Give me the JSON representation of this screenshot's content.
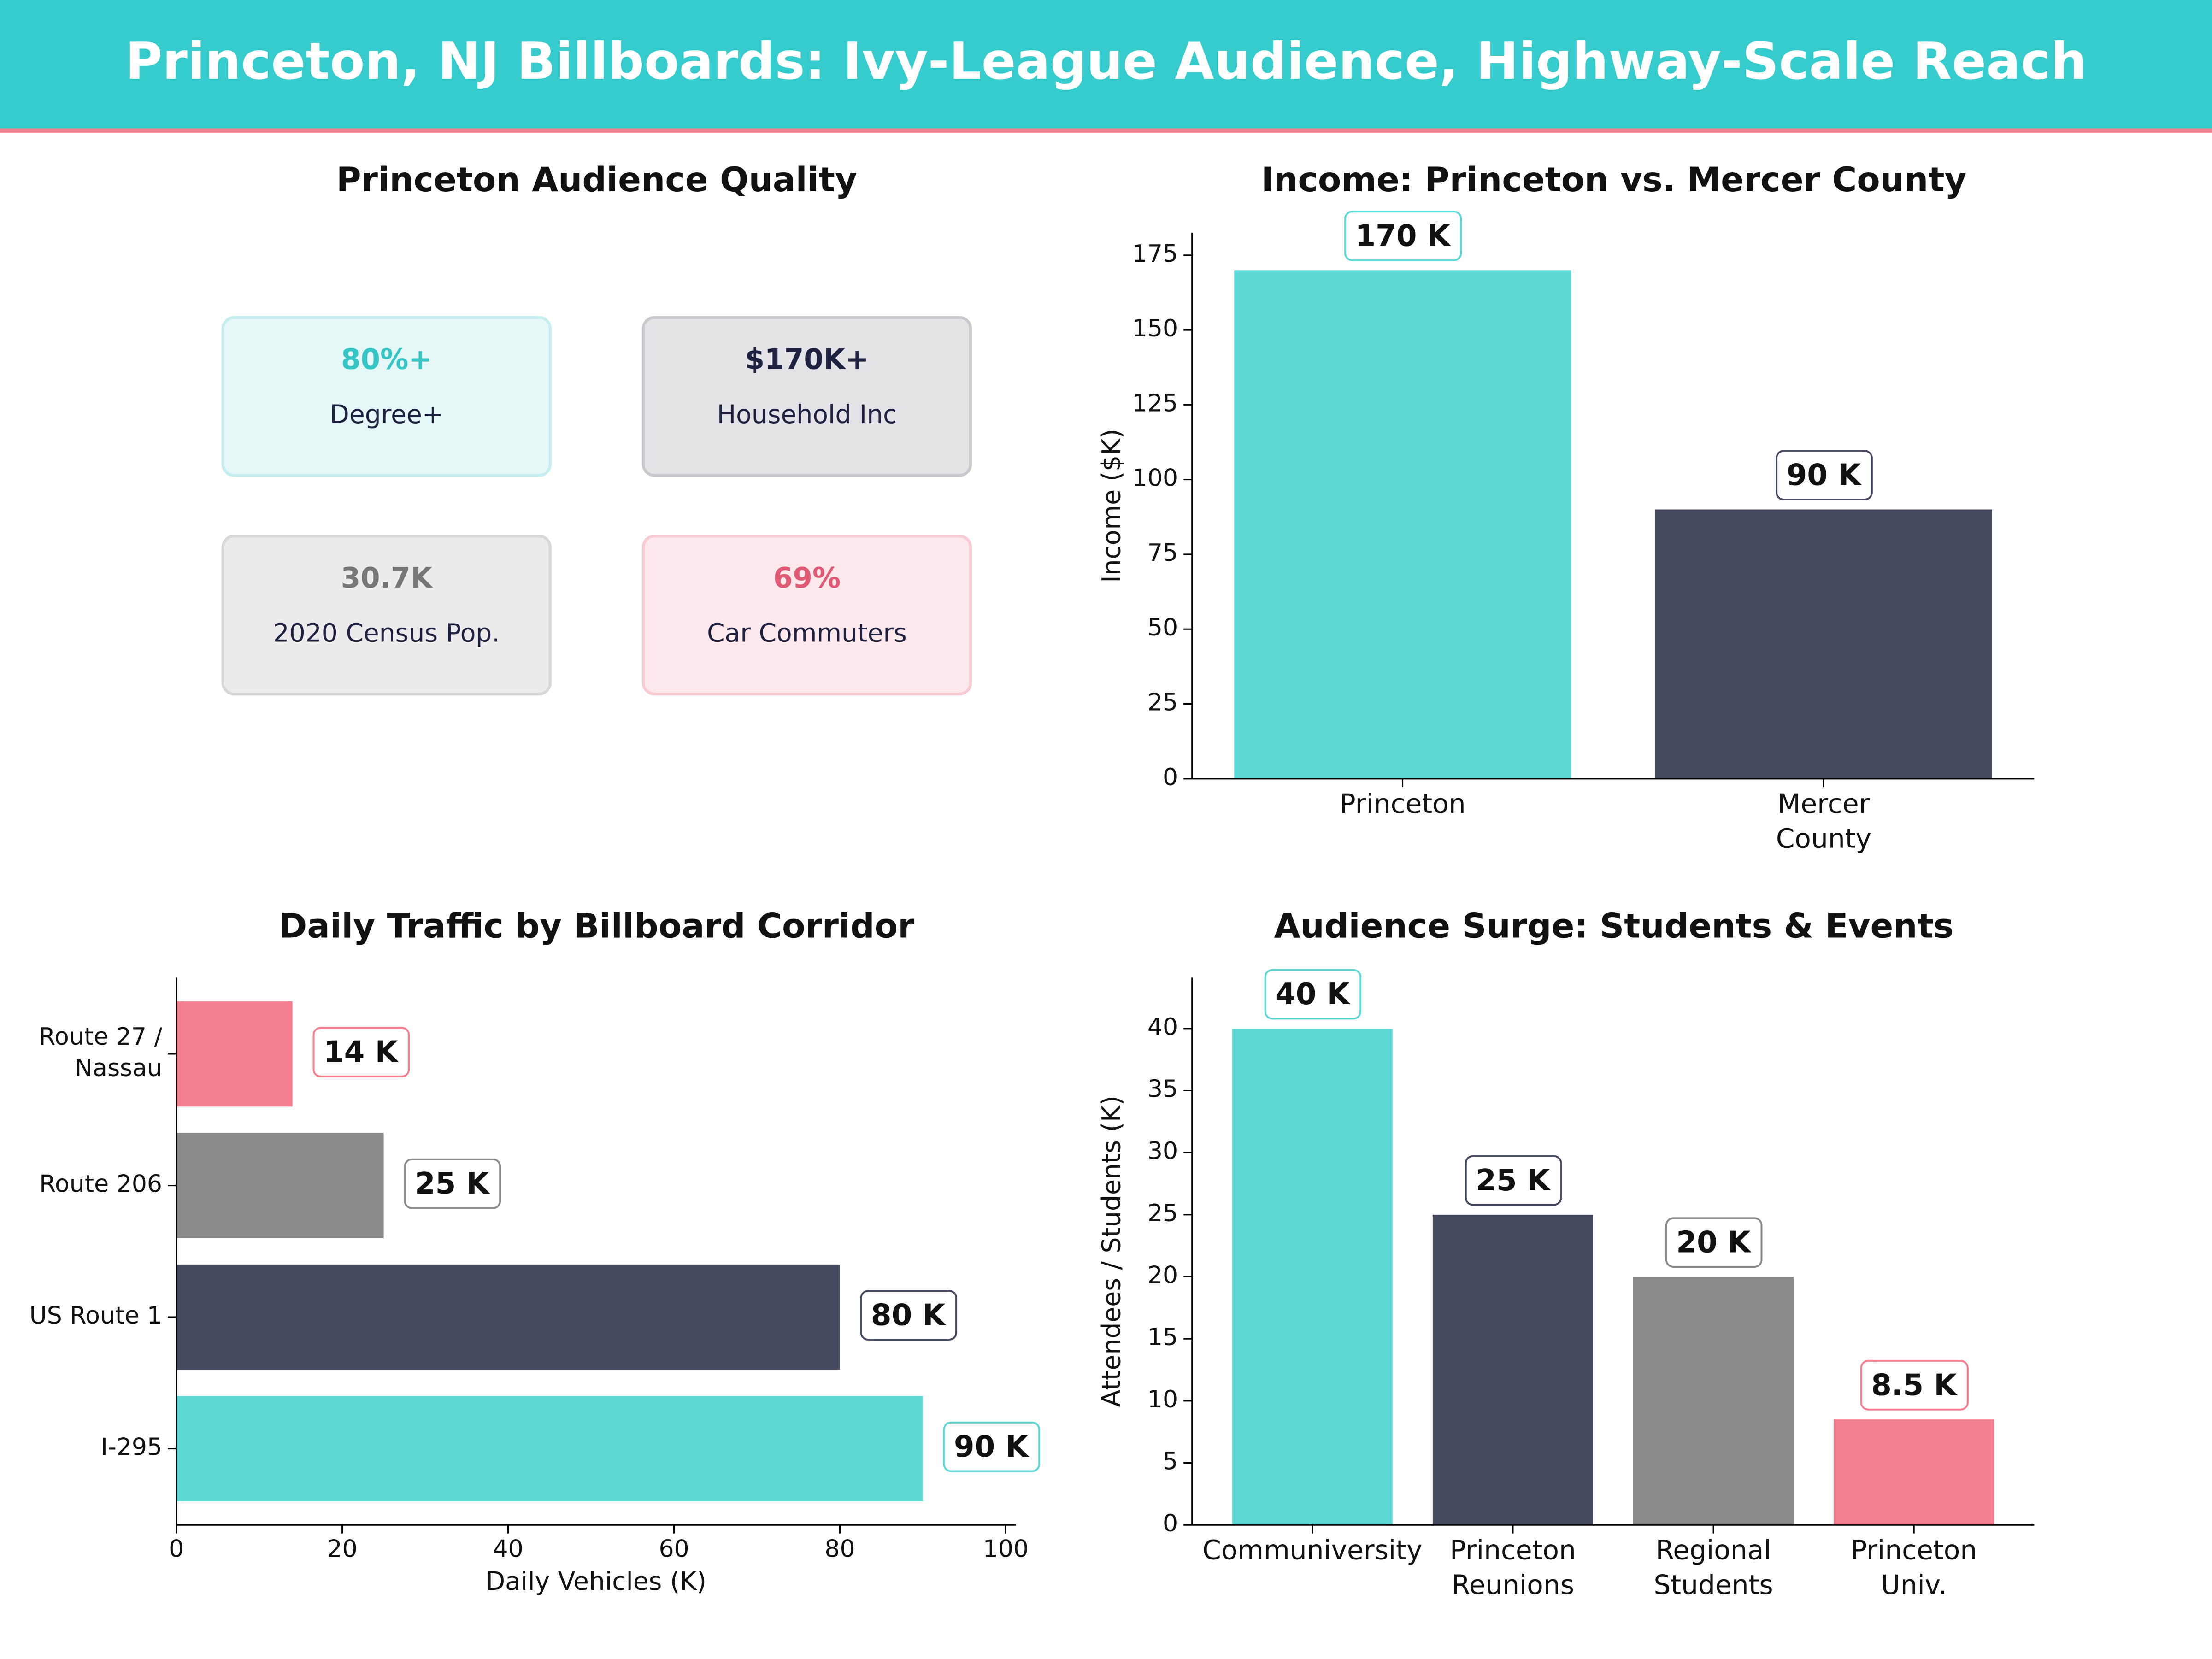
{
  "header": {
    "title": "Princeton, NJ Billboards: Ivy-League Audience, Highway-Scale Reach"
  },
  "kpi_panel": {
    "title": "Princeton Audience Quality",
    "tiles": [
      {
        "value": "80%+",
        "label": "Degree+",
        "color": "#36c5c5",
        "fill": "#e5f7f7",
        "border": "#c6eeee"
      },
      {
        "value": "$170K+",
        "label": "Household Inc",
        "color": "#1e2140",
        "fill": "#e3e4e8",
        "border": "#c8c9cf"
      },
      {
        "value": "30.7K",
        "label": "2020 Census Pop.",
        "color": "#777777",
        "fill": "#ececec",
        "border": "#d8d8d8"
      },
      {
        "value": "69%",
        "label": "Car Commuters",
        "color": "#e05a74",
        "fill": "#fde8ec",
        "border": "#f8cbd3"
      }
    ]
  },
  "chart_data": [
    {
      "type": "bar",
      "title": "Income: Princeton vs. Mercer County",
      "y_label": "Income ($K)",
      "categories": [
        "Princeton",
        "Mercer\nCounty"
      ],
      "values": [
        170,
        90
      ],
      "value_labels": [
        "170 K",
        "90 K"
      ],
      "colors": [
        "#5dd8d5",
        "#464a60"
      ],
      "ylim": [
        0,
        182.5
      ],
      "yticks": [
        0,
        25,
        50,
        75,
        100,
        125,
        150,
        175
      ]
    },
    {
      "type": "barh",
      "title": "Daily Traffic by Billboard Corridor",
      "x_label": "Daily Vehicles (K)",
      "categories": [
        "I-295",
        "US Route 1",
        "Route 206",
        "Route 27 /\nNassau"
      ],
      "values": [
        90,
        80,
        25,
        14
      ],
      "value_labels": [
        "90 K",
        "80 K",
        "25 K",
        "14 K"
      ],
      "colors": [
        "#5dd8d5",
        "#464a60",
        "#8a8a8a",
        "#f47f90"
      ],
      "xlim": [
        0,
        101.2
      ],
      "xticks": [
        0,
        20,
        40,
        60,
        80,
        100
      ]
    },
    {
      "type": "bar",
      "title": "Audience Surge: Students & Events",
      "y_label": "Attendees / Students (K)",
      "categories": [
        "Communiversity",
        "Princeton\nReunions",
        "Regional\nStudents",
        "Princeton\nUniv."
      ],
      "values": [
        40,
        25,
        20,
        8.5
      ],
      "value_labels": [
        "40 K",
        "25 K",
        "20 K",
        "8.5 K"
      ],
      "colors": [
        "#5dd8d5",
        "#464a60",
        "#8a8a8a",
        "#f47f90"
      ],
      "ylim": [
        0,
        44.1
      ],
      "yticks": [
        0,
        5,
        10,
        15,
        20,
        25,
        30,
        35,
        40
      ]
    }
  ]
}
